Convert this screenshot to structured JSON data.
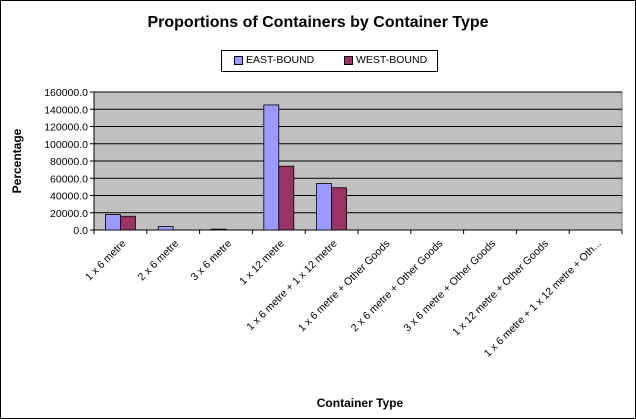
{
  "chart_data": {
    "type": "bar",
    "title": "Proportions of Containers by Container Type",
    "xlabel": "Container Type",
    "ylabel": "Percentage",
    "ylim": [
      0,
      160000
    ],
    "yticks": [
      "0.0",
      "20000.0",
      "40000.0",
      "60000.0",
      "80000.0",
      "100000.0",
      "120000.0",
      "140000.0",
      "160000.0"
    ],
    "grid": true,
    "legend_position": "top",
    "categories": [
      "1 x 6 metre",
      "2 x 6 metre",
      "3 x 6 metre",
      "1 x 12 metre",
      "1 x 6 metre + 1 x 12 metre",
      "1 x 6 metre + Other Goods",
      "2 x 6 metre + Other Goods",
      "3 x 6 metre + Other Goods",
      "1 x 12 metre + Other Goods",
      "1 x 6 metre + 1 x 12 metre + Oth..."
    ],
    "series": [
      {
        "name": "EAST-BOUND",
        "color": "#9999ff",
        "values": [
          18000,
          4000,
          1000,
          145000,
          54000,
          0,
          0,
          0,
          0,
          0
        ]
      },
      {
        "name": "WEST-BOUND",
        "color": "#993366",
        "values": [
          16000,
          0,
          0,
          74000,
          49000,
          0,
          0,
          0,
          0,
          0
        ]
      }
    ],
    "plot_background": "#c0c0c0"
  }
}
